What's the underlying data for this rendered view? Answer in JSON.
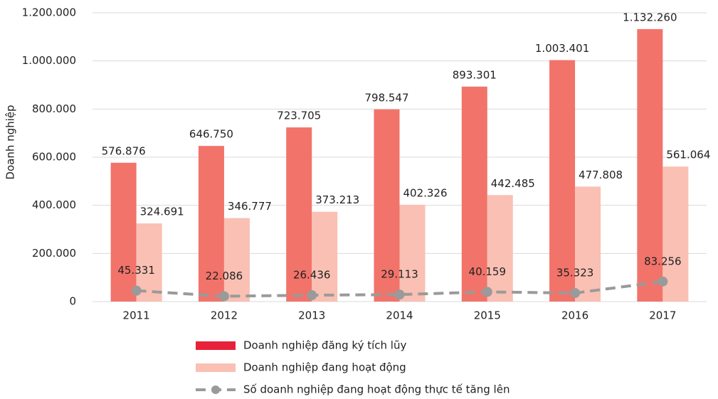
{
  "chart_data": {
    "type": "bar",
    "y_label": "Doanh nghiệp",
    "categories": [
      "2011",
      "2012",
      "2013",
      "2014",
      "2015",
      "2016",
      "2017"
    ],
    "series": [
      {
        "name": "Doanh nghiệp đăng ký tích lũy",
        "color": "#f2736a",
        "legend_color": "#e8213a",
        "values": [
          576876,
          646750,
          723705,
          798547,
          893301,
          1003401,
          1132260
        ],
        "value_labels": [
          "576.876",
          "646.750",
          "723.705",
          "798.547",
          "893.301",
          "1.003.401",
          "1.132.260"
        ]
      },
      {
        "name": "Doanh nghiệp đang hoạt động",
        "color": "#f9c0b3",
        "values": [
          324691,
          346777,
          373213,
          402326,
          442485,
          477808,
          561064
        ],
        "value_labels": [
          "324.691",
          "346.777",
          "373.213",
          "402.326",
          "442.485",
          "477.808",
          "561.064"
        ]
      },
      {
        "name": "Số doanh nghiệp đang hoạt động thực tế tăng lên",
        "color": "#9a9a9a",
        "type": "line",
        "values": [
          45331,
          22086,
          26436,
          29113,
          40159,
          35323,
          83256
        ],
        "value_labels": [
          "45.331",
          "22.086",
          "26.436",
          "29.113",
          "40.159",
          "35.323",
          "83.256"
        ]
      }
    ],
    "ylim": [
      0,
      1200000
    ],
    "yticks": [
      0,
      {
        "value": 200000,
        "label": "200.000"
      },
      {
        "value": 400000,
        "label": "400.000"
      },
      {
        "value": 600000,
        "label": "600.000"
      },
      {
        "value": 800000,
        "label": "800.000"
      },
      {
        "value": 1000000,
        "label": "1.000.000"
      },
      {
        "value": 1200000,
        "label": "1.200.000"
      }
    ],
    "grid": true
  }
}
